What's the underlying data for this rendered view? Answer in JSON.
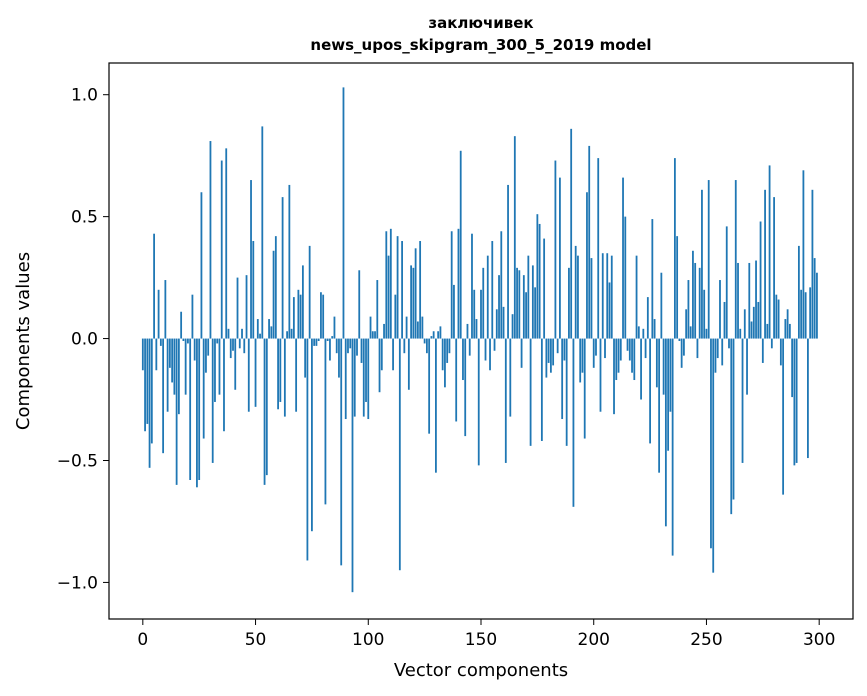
{
  "chart_data": {
    "type": "bar",
    "title": "заключивек",
    "subtitle": "news_upos_skipgram_300_5_2019 model",
    "xlabel": "Vector components",
    "ylabel": "Components values",
    "xlim": [
      -15,
      315
    ],
    "ylim": [
      -1.15,
      1.13
    ],
    "xticks": [
      0,
      50,
      100,
      150,
      200,
      250,
      300
    ],
    "yticks": [
      1.0,
      0.5,
      0.0,
      -0.5,
      -1.0
    ],
    "xtick_labels": [
      "0",
      "50",
      "100",
      "150",
      "200",
      "250",
      "300"
    ],
    "ytick_labels": [
      "1.0",
      "0.5",
      "0.0",
      "−0.5",
      "−1.0"
    ],
    "grid": false,
    "bar_color": "#1f77b4",
    "values": [
      -0.13,
      -0.38,
      -0.35,
      -0.53,
      -0.43,
      0.43,
      -0.13,
      0.2,
      -0.03,
      -0.47,
      0.24,
      -0.3,
      -0.12,
      -0.18,
      -0.23,
      -0.6,
      -0.31,
      0.11,
      -0.01,
      -0.23,
      -0.02,
      -0.58,
      0.18,
      -0.09,
      -0.61,
      -0.58,
      0.6,
      -0.41,
      -0.14,
      -0.07,
      0.81,
      -0.51,
      -0.26,
      -0.02,
      -0.23,
      0.73,
      -0.38,
      0.78,
      0.04,
      -0.08,
      -0.05,
      -0.21,
      0.25,
      -0.04,
      0.04,
      -0.06,
      0.26,
      -0.3,
      0.65,
      0.4,
      -0.28,
      0.08,
      0.02,
      0.87,
      -0.6,
      -0.56,
      0.08,
      0.05,
      0.36,
      0.42,
      -0.29,
      -0.26,
      0.58,
      -0.32,
      0.03,
      0.63,
      0.04,
      0.17,
      -0.3,
      0.2,
      0.18,
      0.3,
      -0.16,
      -0.91,
      0.38,
      -0.79,
      -0.03,
      -0.03,
      -0.01,
      0.19,
      0.18,
      -0.68,
      -0.01,
      -0.09,
      0.01,
      0.09,
      -0.06,
      -0.16,
      -0.93,
      1.03,
      -0.33,
      -0.06,
      -0.04,
      -1.04,
      -0.32,
      -0.07,
      0.28,
      -0.1,
      -0.32,
      -0.26,
      -0.33,
      0.09,
      0.03,
      0.03,
      0.24,
      -0.22,
      -0.13,
      0.06,
      0.44,
      0.34,
      0.45,
      -0.13,
      0.18,
      0.42,
      -0.95,
      0.4,
      -0.06,
      0.09,
      -0.21,
      0.3,
      0.29,
      0.37,
      0.07,
      0.4,
      0.09,
      -0.02,
      -0.06,
      -0.39,
      0.01,
      0.03,
      -0.55,
      0.03,
      0.05,
      -0.13,
      -0.2,
      -0.1,
      -0.06,
      0.44,
      0.22,
      -0.34,
      0.45,
      0.77,
      -0.17,
      -0.4,
      0.06,
      -0.07,
      0.43,
      0.2,
      0.08,
      -0.52,
      0.2,
      0.29,
      -0.09,
      0.34,
      -0.13,
      0.4,
      -0.05,
      0.12,
      0.26,
      0.44,
      0.13,
      -0.51,
      0.63,
      -0.32,
      0.1,
      0.83,
      0.29,
      0.28,
      -0.12,
      0.26,
      0.19,
      0.34,
      -0.44,
      0.3,
      0.21,
      0.51,
      0.47,
      -0.42,
      0.41,
      -0.16,
      -0.1,
      -0.14,
      -0.11,
      0.73,
      -0.06,
      0.66,
      -0.33,
      -0.09,
      -0.44,
      0.29,
      0.86,
      -0.69,
      0.38,
      0.34,
      -0.18,
      -0.14,
      -0.41,
      0.6,
      0.79,
      0.33,
      -0.12,
      -0.07,
      0.74,
      -0.3,
      0.35,
      -0.08,
      0.35,
      0.23,
      0.34,
      -0.31,
      -0.17,
      -0.14,
      -0.09,
      0.66,
      0.5,
      -0.05,
      -0.09,
      -0.14,
      -0.17,
      0.34,
      0.05,
      -0.25,
      0.04,
      -0.08,
      0.17,
      -0.43,
      0.49,
      0.08,
      -0.2,
      -0.55,
      0.27,
      -0.23,
      -0.77,
      -0.46,
      -0.3,
      -0.89,
      0.74,
      0.42,
      -0.01,
      -0.12,
      -0.07,
      0.12,
      0.24,
      0.05,
      0.36,
      0.31,
      -0.08,
      0.29,
      0.61,
      0.2,
      0.04,
      0.65,
      -0.86,
      -0.96,
      -0.14,
      -0.08,
      0.24,
      -0.11,
      0.15,
      0.46,
      -0.04,
      -0.72,
      -0.66,
      0.65,
      0.31,
      0.04,
      -0.51,
      0.12,
      -0.23,
      0.31,
      0.07,
      0.13,
      0.32,
      0.15,
      0.48,
      -0.1,
      0.61,
      0.06,
      0.71,
      -0.04,
      0.58,
      0.18,
      0.16,
      -0.11,
      -0.64,
      0.08,
      0.12,
      0.06,
      -0.24,
      -0.52,
      -0.51,
      0.38,
      0.2,
      0.69,
      0.19,
      -0.49,
      0.21,
      0.61,
      0.33,
      0.27
    ]
  }
}
